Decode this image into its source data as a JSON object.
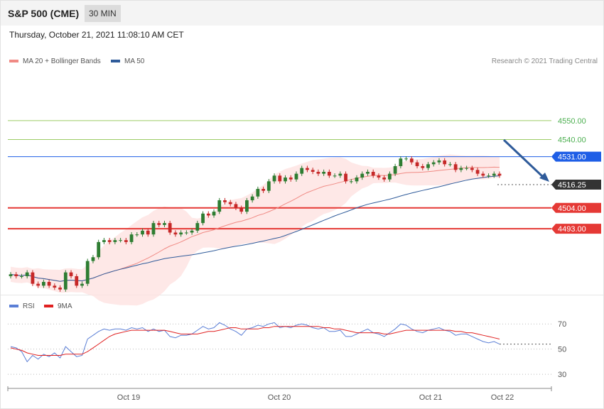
{
  "header": {
    "title": "S&P 500 (CME)",
    "timeframe": "30 MIN"
  },
  "datetime": "Thursday, October 21, 2021 11:08:10 AM CET",
  "copyright": "Research © 2021 Trading Central",
  "legend_main": [
    {
      "label": "MA 20 + Bollinger Bands",
      "color": "#f08a84"
    },
    {
      "label": "MA 50",
      "color": "#2f5b9a"
    }
  ],
  "legend_rsi": [
    {
      "label": "RSI",
      "color": "#5b7fd6"
    },
    {
      "label": "9MA",
      "color": "#e02020"
    }
  ],
  "colors": {
    "up": "#2e7d32",
    "down": "#c62828",
    "resistance": "#9ccc65",
    "support": "#e53935",
    "ma50_level": "#1e5ee6",
    "price": "#333333",
    "arrow": "#2f5b9a"
  },
  "chart_data": [
    {
      "type": "candlestick",
      "title": "S&P 500 (CME)",
      "ylim": [
        4462,
        4578
      ],
      "x_ticks": [
        "Oct 19",
        "Oct 20",
        "Oct 21",
        "Oct 22"
      ],
      "levels": [
        {
          "value": 4550.0,
          "label": "4550.00",
          "kind": "resistance"
        },
        {
          "value": 4540.0,
          "label": "4540.00",
          "kind": "resistance"
        },
        {
          "value": 4531.0,
          "label": "4531.00",
          "kind": "pivot"
        },
        {
          "value": 4516.25,
          "label": "4516.25",
          "kind": "last"
        },
        {
          "value": 4504.0,
          "label": "4504.00",
          "kind": "support"
        },
        {
          "value": 4493.0,
          "label": "4493.00",
          "kind": "support"
        }
      ],
      "close": [
        4469,
        4468,
        4468,
        4470,
        4464,
        4463,
        4465,
        4463,
        4462,
        4461,
        4470,
        4468,
        4463,
        4464,
        4476,
        4478,
        4486,
        4487,
        4486,
        4487,
        4487,
        4486,
        4490,
        4490,
        4492,
        4490,
        4496,
        4495,
        4496,
        4491,
        4490,
        4491,
        4491,
        4492,
        4496,
        4501,
        4500,
        4502,
        4508,
        4507,
        4506,
        4504,
        4502,
        4508,
        4510,
        4514,
        4513,
        4518,
        4521,
        4518,
        4520,
        4519,
        4522,
        4525,
        4524,
        4523,
        4522,
        4523,
        4521,
        4521,
        4522,
        4518,
        4518,
        4520,
        4522,
        4523,
        4521,
        4520,
        4519,
        4522,
        4526,
        4530,
        4530,
        4528,
        4526,
        4525,
        4527,
        4528,
        4529,
        4527,
        4527,
        4524,
        4525,
        4525,
        4524,
        4522,
        4521,
        4521,
        4522,
        4521
      ],
      "rsi": {
        "ylim": [
          25,
          78
        ],
        "gridlines": [
          70,
          50,
          30
        ],
        "rsi": [
          52,
          51,
          48,
          40,
          45,
          42,
          46,
          44,
          47,
          43,
          52,
          48,
          44,
          45,
          58,
          61,
          64,
          66,
          65,
          66,
          66,
          65,
          67,
          66,
          67,
          64,
          66,
          64,
          65,
          60,
          59,
          61,
          61,
          62,
          65,
          68,
          66,
          67,
          71,
          69,
          66,
          64,
          61,
          66,
          67,
          69,
          68,
          70,
          71,
          67,
          68,
          67,
          69,
          70,
          69,
          67,
          66,
          67,
          64,
          64,
          65,
          60,
          60,
          62,
          64,
          66,
          63,
          62,
          60,
          63,
          66,
          70,
          69,
          66,
          64,
          63,
          65,
          66,
          67,
          65,
          64,
          61,
          62,
          62,
          60,
          58,
          56,
          55,
          56,
          54
        ],
        "ma9": [
          51,
          50,
          49,
          47,
          46,
          45,
          45,
          45,
          45,
          45,
          46,
          46,
          46,
          46,
          48,
          51,
          54,
          57,
          60,
          62,
          63,
          64,
          65,
          65,
          65,
          65,
          65,
          65,
          65,
          64,
          63,
          62,
          62,
          62,
          62,
          63,
          64,
          64,
          65,
          66,
          67,
          67,
          66,
          66,
          66,
          66,
          67,
          67,
          68,
          68,
          68,
          68,
          68,
          68,
          68,
          68,
          68,
          67,
          67,
          66,
          66,
          65,
          64,
          63,
          63,
          63,
          63,
          63,
          62,
          62,
          63,
          64,
          65,
          65,
          65,
          65,
          65,
          65,
          65,
          65,
          65,
          64,
          64,
          63,
          63,
          62,
          61,
          60,
          59,
          58
        ]
      }
    }
  ]
}
